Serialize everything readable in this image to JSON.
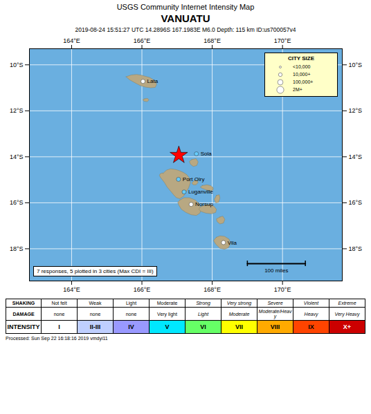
{
  "chart_data": {
    "type": "map",
    "header": "USGS Community Internet Intensity Map",
    "title": "VANUATU",
    "subtitle": "2019-08-24 15:51:27 UTC 14.2896S 167.1983E M6.0 Depth: 115 km ID:us700057v4",
    "caption": "Processed: Sun Sep 22 16:18:16 2019 vmdyi11",
    "background_color": "#6aafe0",
    "xlim": [
      162.8,
      171.7
    ],
    "ylim": [
      -19.4,
      -9.3
    ],
    "xticks": [
      {
        "value": 164,
        "label": "164°E"
      },
      {
        "value": 166,
        "label": "166°E"
      },
      {
        "value": 168,
        "label": "168°E"
      },
      {
        "value": 170,
        "label": "170°E"
      }
    ],
    "yticks": [
      {
        "value": -10,
        "label": "10°S"
      },
      {
        "value": -12,
        "label": "12°S"
      },
      {
        "value": -14,
        "label": "14°S"
      },
      {
        "value": -16,
        "label": "16°S"
      },
      {
        "value": -18,
        "label": "18°S"
      }
    ],
    "grid": true,
    "islands": {
      "color": "#b8a882",
      "edge_color": "#888060",
      "shapes": [
        {
          "x": [
            165.55,
            165.7,
            165.85,
            165.98,
            166.1,
            166.22,
            166.3,
            166.38,
            166.42,
            166.38,
            166.25,
            166.1,
            165.95,
            165.8,
            165.65,
            165.55
          ],
          "y": [
            -10.52,
            -10.44,
            -10.42,
            -10.45,
            -10.5,
            -10.55,
            -10.62,
            -10.72,
            -10.85,
            -10.98,
            -11.0,
            -10.97,
            -10.9,
            -10.78,
            -10.65,
            -10.52
          ]
        },
        {
          "x": [
            166.08,
            166.16,
            166.2,
            166.15,
            166.06,
            166.02,
            166.08
          ],
          "y": [
            -11.48,
            -11.46,
            -11.53,
            -11.6,
            -11.58,
            -11.52,
            -11.48
          ]
        },
        {
          "x": [
            167.42,
            167.54,
            167.6,
            167.56,
            167.46,
            167.38,
            167.35,
            167.42
          ],
          "y": [
            -14.12,
            -14.08,
            -14.22,
            -14.38,
            -14.42,
            -14.32,
            -14.2,
            -14.12
          ]
        },
        {
          "x": [
            166.6,
            166.7,
            166.82,
            166.95,
            167.06,
            167.18,
            167.28,
            167.35,
            167.38,
            167.33,
            167.25,
            167.18,
            167.08,
            166.98,
            166.9,
            166.82,
            166.72,
            166.64,
            166.57,
            166.52,
            166.5,
            166.52,
            166.58,
            166.6
          ],
          "y": [
            -14.72,
            -14.58,
            -14.52,
            -14.55,
            -14.6,
            -14.68,
            -14.78,
            -14.92,
            -15.12,
            -15.35,
            -15.55,
            -15.72,
            -15.82,
            -15.78,
            -15.65,
            -15.5,
            -15.32,
            -15.12,
            -14.98,
            -14.88,
            -14.8,
            -14.74,
            -14.7,
            -14.72
          ]
        },
        {
          "x": [
            167.48,
            167.57,
            167.6,
            167.54,
            167.46,
            167.42,
            167.48
          ],
          "y": [
            -15.05,
            -15.02,
            -15.12,
            -15.22,
            -15.22,
            -15.14,
            -15.05
          ]
        },
        {
          "x": [
            167.08,
            167.2,
            167.35,
            167.52,
            167.63,
            167.68,
            167.65,
            167.55,
            167.4,
            167.25,
            167.12,
            167.05,
            167.02,
            167.08
          ],
          "y": [
            -15.88,
            -15.78,
            -15.78,
            -15.88,
            -16.05,
            -16.28,
            -16.45,
            -16.55,
            -16.52,
            -16.42,
            -16.28,
            -16.1,
            -15.98,
            -15.88
          ]
        },
        {
          "x": [
            167.72,
            167.85,
            167.95,
            168.03,
            168.02,
            167.93,
            167.82,
            167.72,
            167.66,
            167.72
          ],
          "y": [
            -15.25,
            -15.22,
            -15.25,
            -15.35,
            -15.45,
            -15.48,
            -15.43,
            -15.38,
            -15.32,
            -15.25
          ]
        },
        {
          "x": [
            168.12,
            168.2,
            168.22,
            168.18,
            168.1,
            168.06,
            168.12
          ],
          "y": [
            -15.68,
            -15.65,
            -15.8,
            -15.98,
            -16.0,
            -15.85,
            -15.68
          ]
        },
        {
          "x": [
            167.7,
            167.82,
            167.95,
            168.05,
            168.12,
            168.1,
            167.98,
            167.82,
            167.68,
            167.62,
            167.65,
            167.7
          ],
          "y": [
            -16.15,
            -16.08,
            -16.08,
            -16.15,
            -16.28,
            -16.42,
            -16.48,
            -16.45,
            -16.38,
            -16.28,
            -16.2,
            -16.15
          ]
        },
        {
          "x": [
            168.22,
            168.3,
            168.36,
            168.32,
            168.22,
            168.14,
            168.12,
            168.22
          ],
          "y": [
            -16.62,
            -16.58,
            -16.72,
            -16.88,
            -16.92,
            -16.82,
            -16.7,
            -16.62
          ]
        },
        {
          "x": [
            168.12,
            168.22,
            168.35,
            168.48,
            168.52,
            168.46,
            168.35,
            168.22,
            168.1,
            168.04,
            168.08,
            168.12
          ],
          "y": [
            -17.5,
            -17.44,
            -17.46,
            -17.58,
            -17.78,
            -17.95,
            -18.02,
            -17.98,
            -17.8,
            -17.65,
            -17.56,
            -17.5
          ]
        }
      ]
    },
    "cities": [
      {
        "name": "Lata",
        "x": 166.03,
        "y": -10.72,
        "color": "#ffffff"
      },
      {
        "name": "Sola",
        "x": 167.55,
        "y": -13.87,
        "color": "#66ccff"
      },
      {
        "name": "Port Olry",
        "x": 167.04,
        "y": -14.98,
        "color": "#66ccff"
      },
      {
        "name": "Luganville",
        "x": 167.2,
        "y": -15.53,
        "color": "#66ccff"
      },
      {
        "name": "Norsup",
        "x": 167.4,
        "y": -16.07,
        "color": "#ffffff"
      },
      {
        "name": "Vila",
        "x": 168.32,
        "y": -17.73,
        "color": "#ffffff"
      }
    ],
    "epicenter": {
      "x": 167.05,
      "y": -13.93,
      "color": "red",
      "marker": "star"
    },
    "scale_bar": {
      "x": [
        169.0,
        170.65
      ],
      "y": -18.65,
      "label": "100 miles"
    },
    "annotation": "7 responses, 5 plotted in 3 cities (Max CDI = III)",
    "city_size_legend": {
      "title": "CITY SIZE",
      "labels": [
        "<10,000",
        "10,000+",
        "100,000+",
        "2M+"
      ]
    },
    "intensity_table": {
      "rows": [
        {
          "name": "SHAKING",
          "labels": [
            "Not felt",
            "Weak",
            "Light",
            "Moderate",
            "Strong",
            "Very strong",
            "Severe",
            "Violent",
            "Extreme"
          ]
        },
        {
          "name": "DAMAGE",
          "labels": [
            "none",
            "none",
            "none",
            "Very light",
            "Light",
            "Moderate",
            "Moderate/Heavy",
            "Heavy",
            "Very Heavy"
          ]
        },
        {
          "name": "INTENSITY",
          "labels": [
            "I",
            "II-III",
            "IV",
            "V",
            "VI",
            "VII",
            "VIII",
            "IX",
            "X+"
          ],
          "colors": [
            "#ffffff",
            "#bfcfff",
            "#9999ff",
            "#00e8ff",
            "#66ff66",
            "#ffff00",
            "#ffaa00",
            "#ff4400",
            "#cc0000"
          ]
        }
      ]
    }
  }
}
